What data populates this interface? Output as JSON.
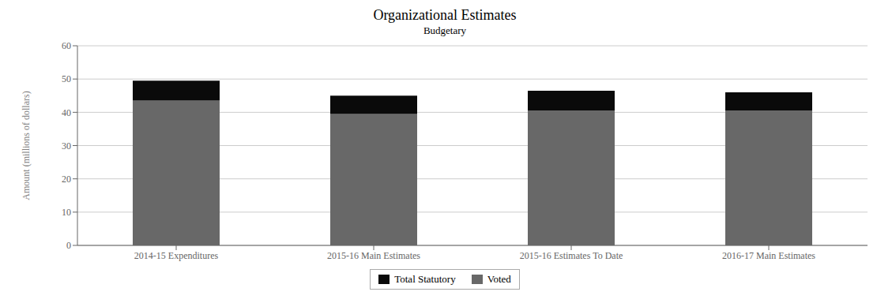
{
  "chart_data": {
    "type": "bar",
    "title": "Organizational Estimates",
    "subtitle": "Budgetary",
    "ylabel": "Amount (millions of dollars)",
    "categories": [
      "2014-15 Expenditures",
      "2015-16 Main Estimates",
      "2015-16 Estimates To Date",
      "2016-17 Main Estimates"
    ],
    "series": [
      {
        "name": "Voted",
        "color": "#686868",
        "values": [
          43.5,
          39.5,
          40.5,
          40.5
        ]
      },
      {
        "name": "Total Statutory",
        "color": "#0a0a0a",
        "values": [
          6.0,
          5.5,
          6.0,
          5.5
        ]
      }
    ],
    "stacked": true,
    "ylim": [
      0,
      60
    ],
    "yticks": [
      0,
      10,
      20,
      30,
      40,
      50,
      60
    ],
    "grid": true,
    "legend": "bottom"
  }
}
